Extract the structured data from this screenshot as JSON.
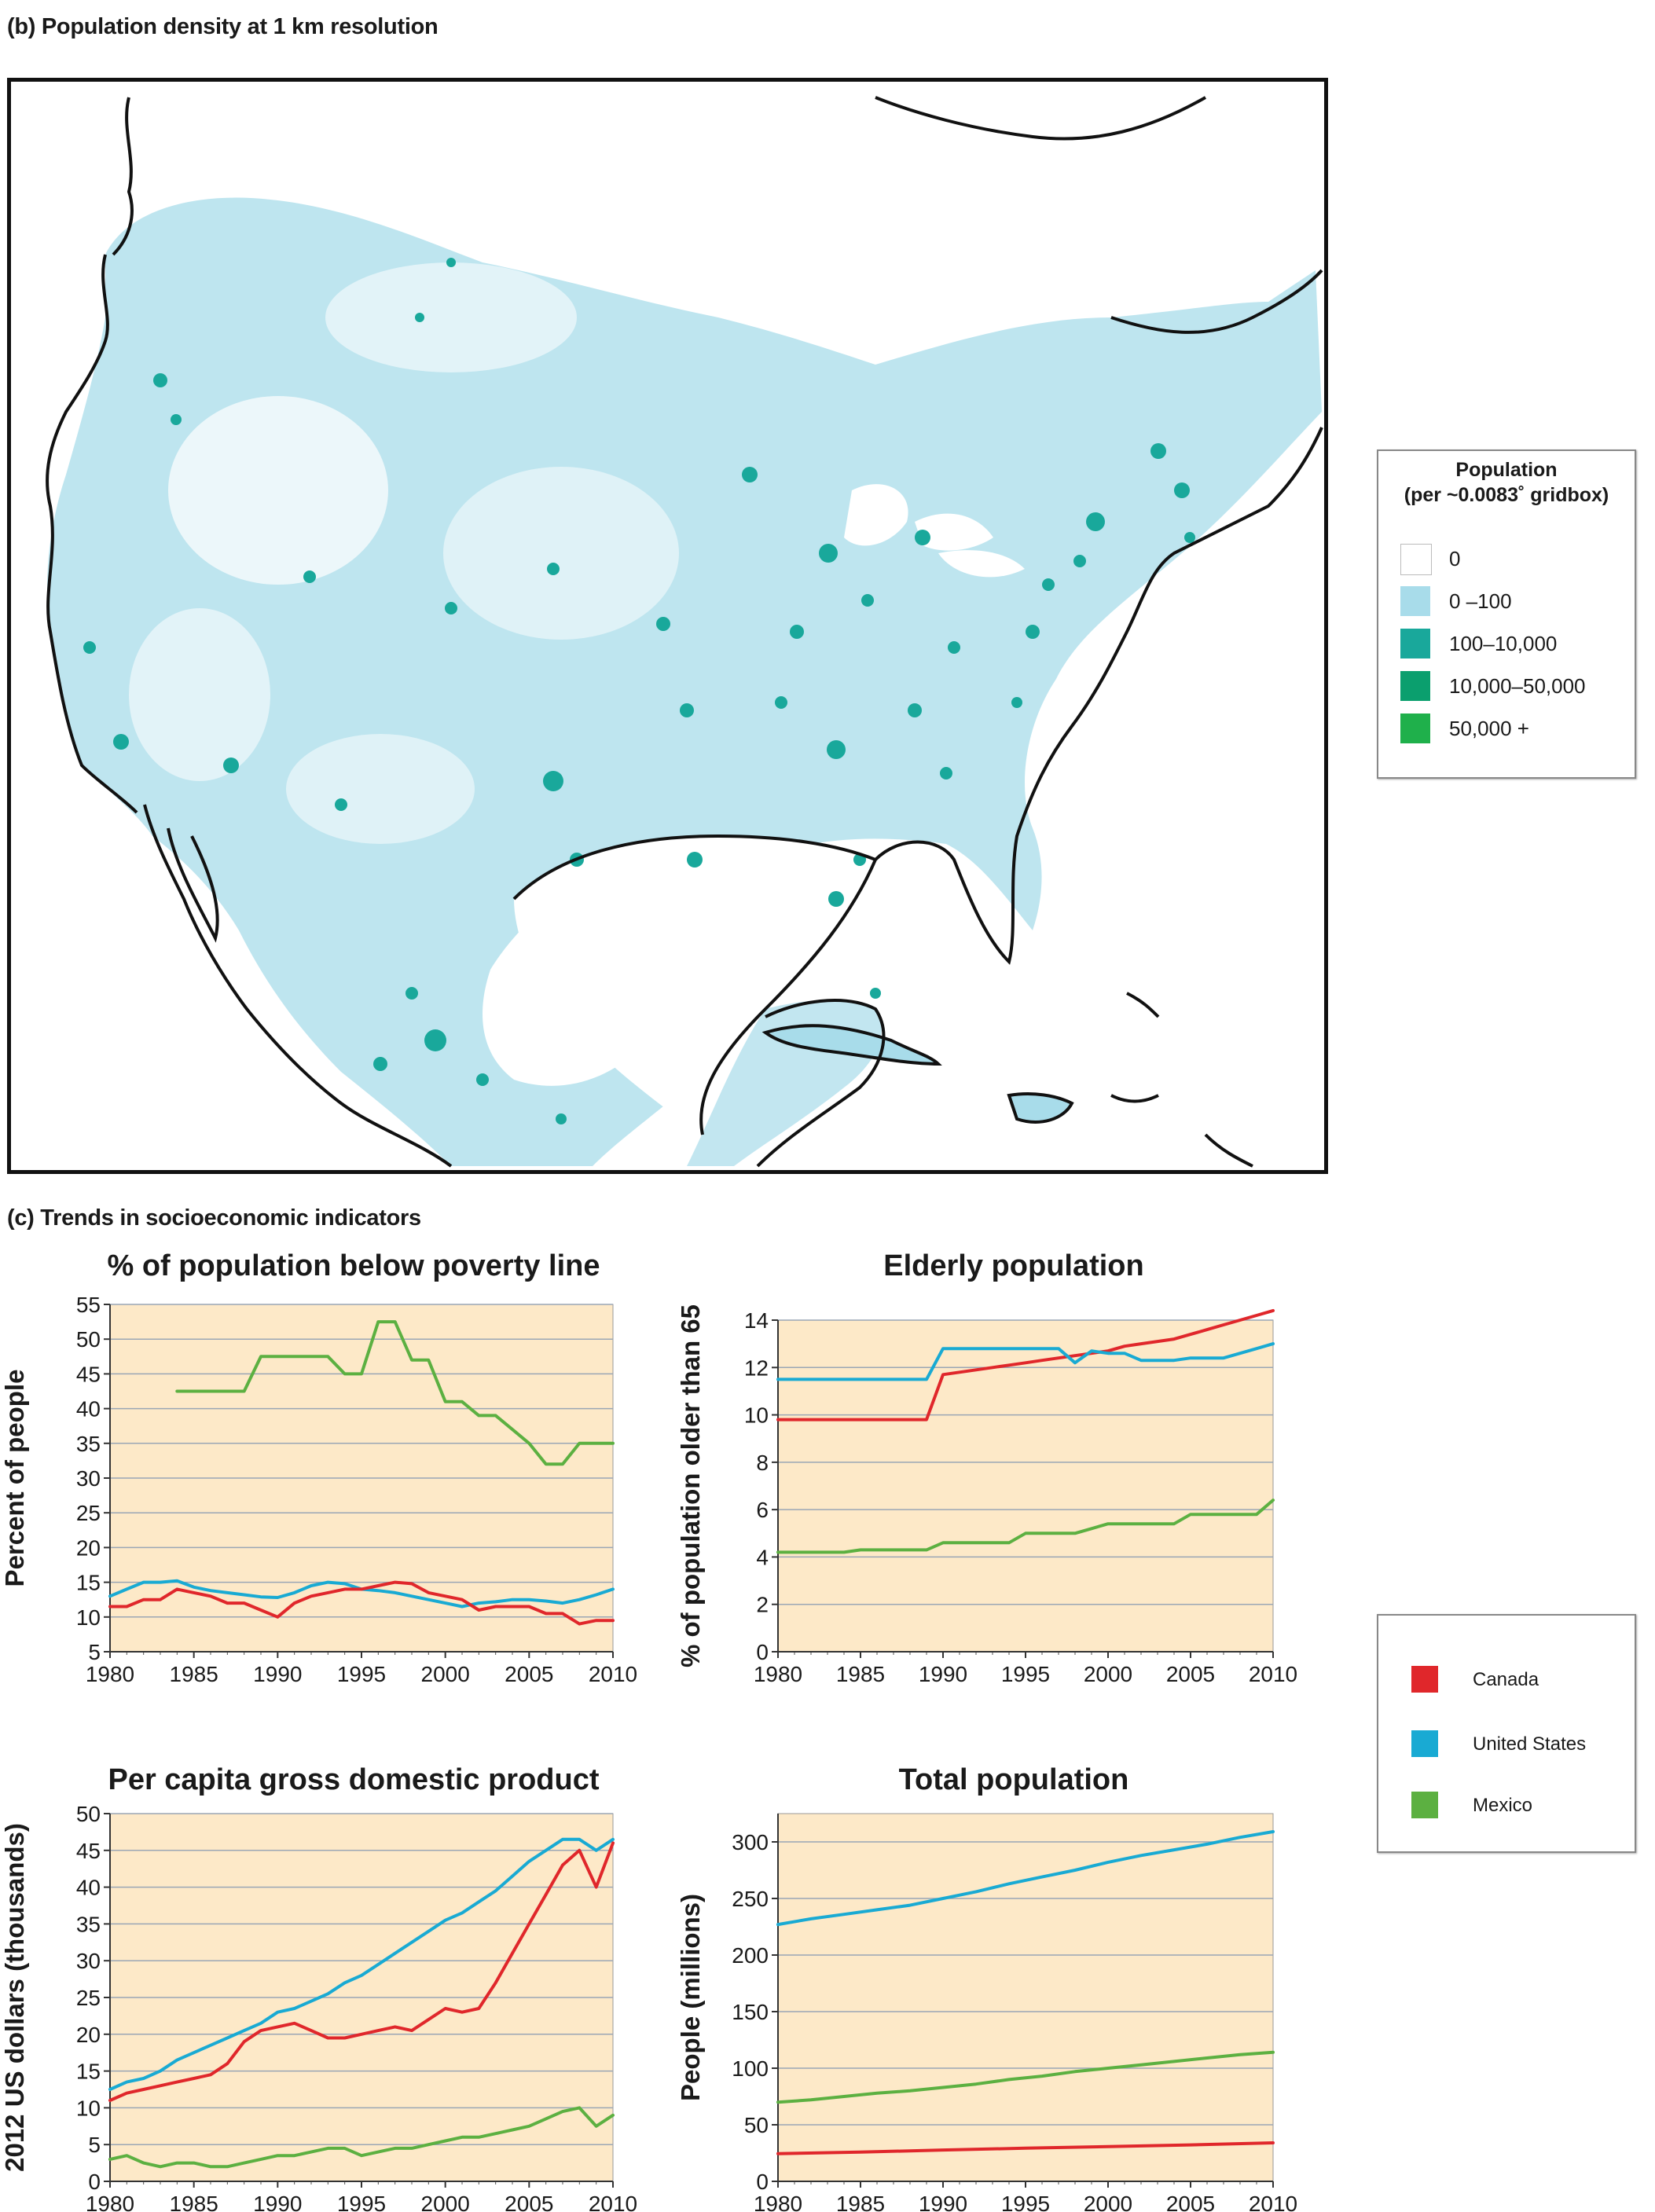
{
  "map_section": {
    "label": "(b) Population density at 1 km resolution",
    "legend": {
      "title_line1": "Population",
      "title_line2": "(per ~0.0083˚ gridbox)",
      "items": [
        {
          "label": "0",
          "color": "#ffffff"
        },
        {
          "label": "0 –100",
          "color": "#a8dcea"
        },
        {
          "label": "100–10,000",
          "color": "#19a89b"
        },
        {
          "label": "10,000–50,000",
          "color": "#0b9f6e"
        },
        {
          "label": "50,000 +",
          "color": "#1fb04b"
        }
      ]
    }
  },
  "trends_section": {
    "label": "(c) Trends in socioeconomic indicators"
  },
  "series_legend": [
    {
      "name": "Canada",
      "color": "#e0272b"
    },
    {
      "name": "United States",
      "color": "#19aad3"
    },
    {
      "name": "Mexico",
      "color": "#5cb041"
    }
  ],
  "colors": {
    "panel_bg": "#fde9c8",
    "grid": "#9aa6b5"
  },
  "chart_data": [
    {
      "id": "poverty",
      "type": "line",
      "title": "% of population below poverty line",
      "ylabel": "Percent of people",
      "xlabel": "",
      "xlim": [
        1980,
        2010
      ],
      "ylim": [
        5,
        55
      ],
      "xticks": [
        1980,
        1985,
        1990,
        1995,
        2000,
        2005,
        2010
      ],
      "yticks": [
        5,
        10,
        15,
        20,
        25,
        30,
        35,
        40,
        45,
        50,
        55
      ],
      "grid": true,
      "series": [
        {
          "name": "Mexico",
          "x": [
            1984,
            1988,
            1989,
            1993,
            1994,
            1995,
            1996,
            1997,
            1998,
            1999,
            2000,
            2001,
            2002,
            2003,
            2004,
            2005,
            2006,
            2007,
            2008,
            2010
          ],
          "values": [
            42.5,
            42.5,
            47.5,
            47.5,
            45,
            45,
            52.5,
            52.5,
            47,
            47,
            41,
            41,
            39,
            39,
            37,
            35,
            32,
            32,
            35,
            35
          ]
        },
        {
          "name": "United States",
          "x": [
            1980,
            1981,
            1982,
            1983,
            1984,
            1985,
            1986,
            1987,
            1988,
            1989,
            1990,
            1991,
            1992,
            1993,
            1994,
            1995,
            1996,
            1997,
            1998,
            1999,
            2000,
            2001,
            2002,
            2003,
            2004,
            2005,
            2006,
            2007,
            2008,
            2009,
            2010
          ],
          "values": [
            13,
            14,
            15,
            15,
            15.2,
            14.3,
            13.8,
            13.5,
            13.2,
            12.9,
            12.8,
            13.5,
            14.5,
            15,
            14.8,
            14,
            13.8,
            13.5,
            13,
            12.5,
            12,
            11.5,
            12,
            12.2,
            12.5,
            12.5,
            12.3,
            12,
            12.5,
            13.2,
            14
          ]
        },
        {
          "name": "Canada",
          "x": [
            1980,
            1981,
            1982,
            1983,
            1984,
            1985,
            1986,
            1987,
            1988,
            1989,
            1990,
            1991,
            1992,
            1993,
            1994,
            1995,
            1996,
            1997,
            1998,
            1999,
            2000,
            2001,
            2002,
            2003,
            2004,
            2005,
            2006,
            2007,
            2008,
            2009,
            2010
          ],
          "values": [
            11.5,
            11.5,
            12.5,
            12.5,
            14,
            13.5,
            13,
            12,
            12,
            11,
            10,
            12,
            13,
            13.5,
            14,
            14,
            14.5,
            15,
            14.8,
            13.5,
            13,
            12.5,
            11,
            11.5,
            11.5,
            11.5,
            10.5,
            10.5,
            9,
            9.5,
            9.5
          ]
        }
      ]
    },
    {
      "id": "elderly",
      "type": "line",
      "title": "Elderly population",
      "ylabel": "% of population older than 65",
      "xlabel": "",
      "xlim": [
        1980,
        2010
      ],
      "ylim": [
        0,
        14
      ],
      "xticks": [
        1980,
        1985,
        1990,
        1995,
        2000,
        2005,
        2010
      ],
      "yticks": [
        0,
        2,
        4,
        6,
        8,
        10,
        12,
        14
      ],
      "grid": true,
      "series": [
        {
          "name": "Canada",
          "x": [
            1980,
            1985,
            1989,
            1990,
            1991,
            1992,
            1993,
            1994,
            1995,
            1996,
            1997,
            1998,
            1999,
            2000,
            2001,
            2002,
            2003,
            2004,
            2005,
            2006,
            2007,
            2008,
            2009,
            2010
          ],
          "values": [
            9.8,
            9.8,
            9.8,
            11.7,
            11.8,
            11.9,
            12,
            12.1,
            12.2,
            12.3,
            12.4,
            12.5,
            12.6,
            12.7,
            12.9,
            13,
            13.1,
            13.2,
            13.4,
            13.6,
            13.8,
            14,
            14.2,
            14.4
          ]
        },
        {
          "name": "United States",
          "x": [
            1980,
            1989,
            1990,
            1997,
            1998,
            1999,
            2000,
            2001,
            2002,
            2003,
            2004,
            2005,
            2006,
            2007,
            2008,
            2009,
            2010
          ],
          "values": [
            11.5,
            11.5,
            12.8,
            12.8,
            12.2,
            12.7,
            12.6,
            12.6,
            12.3,
            12.3,
            12.3,
            12.4,
            12.4,
            12.4,
            12.6,
            12.8,
            13
          ]
        },
        {
          "name": "Mexico",
          "x": [
            1980,
            1984,
            1985,
            1989,
            1990,
            1994,
            1995,
            1998,
            1999,
            2000,
            2003,
            2004,
            2005,
            2009,
            2010
          ],
          "values": [
            4.2,
            4.2,
            4.3,
            4.3,
            4.6,
            4.6,
            5,
            5,
            5.2,
            5.4,
            5.4,
            5.4,
            5.8,
            5.8,
            6.4
          ]
        }
      ]
    },
    {
      "id": "gdp",
      "type": "line",
      "title": "Per capita gross domestic product",
      "ylabel": "2012 US dollars (thousands)",
      "xlabel": "",
      "xlim": [
        1980,
        2010
      ],
      "ylim": [
        0,
        50
      ],
      "xticks": [
        1980,
        1985,
        1990,
        1995,
        2000,
        2005,
        2010
      ],
      "yticks": [
        0,
        5,
        10,
        15,
        20,
        25,
        30,
        35,
        40,
        45,
        50
      ],
      "grid": true,
      "series": [
        {
          "name": "United States",
          "x": [
            1980,
            1981,
            1982,
            1983,
            1984,
            1985,
            1986,
            1987,
            1988,
            1989,
            1990,
            1991,
            1992,
            1993,
            1994,
            1995,
            1996,
            1997,
            1998,
            1999,
            2000,
            2001,
            2002,
            2003,
            2004,
            2005,
            2006,
            2007,
            2008,
            2009,
            2010
          ],
          "values": [
            12.5,
            13.5,
            14,
            15,
            16.5,
            17.5,
            18.5,
            19.5,
            20.5,
            21.5,
            23,
            23.5,
            24.5,
            25.5,
            27,
            28,
            29.5,
            31,
            32.5,
            34,
            35.5,
            36.5,
            38,
            39.5,
            41.5,
            43.5,
            45,
            46.5,
            46.5,
            45,
            46.5
          ]
        },
        {
          "name": "Canada",
          "x": [
            1980,
            1981,
            1982,
            1983,
            1984,
            1985,
            1986,
            1987,
            1988,
            1989,
            1990,
            1991,
            1992,
            1993,
            1994,
            1995,
            1996,
            1997,
            1998,
            1999,
            2000,
            2001,
            2002,
            2003,
            2004,
            2005,
            2006,
            2007,
            2008,
            2009,
            2010
          ],
          "values": [
            11,
            12,
            12.5,
            13,
            13.5,
            14,
            14.5,
            16,
            19,
            20.5,
            21,
            21.5,
            20.5,
            19.5,
            19.5,
            20,
            20.5,
            21,
            20.5,
            22,
            23.5,
            23,
            23.5,
            27,
            31,
            35,
            39,
            43,
            45,
            40,
            46
          ]
        },
        {
          "name": "Mexico",
          "x": [
            1980,
            1981,
            1982,
            1983,
            1984,
            1985,
            1986,
            1987,
            1988,
            1989,
            1990,
            1991,
            1992,
            1993,
            1994,
            1995,
            1996,
            1997,
            1998,
            1999,
            2000,
            2001,
            2002,
            2003,
            2004,
            2005,
            2006,
            2007,
            2008,
            2009,
            2010
          ],
          "values": [
            3,
            3.5,
            2.5,
            2,
            2.5,
            2.5,
            2,
            2,
            2.5,
            3,
            3.5,
            3.5,
            4,
            4.5,
            4.5,
            3.5,
            4,
            4.5,
            4.5,
            5,
            5.5,
            6,
            6,
            6.5,
            7,
            7.5,
            8.5,
            9.5,
            10,
            7.5,
            9
          ]
        }
      ]
    },
    {
      "id": "population",
      "type": "line",
      "title": "Total population",
      "ylabel": "People (millions)",
      "xlabel": "",
      "xlim": [
        1980,
        2010
      ],
      "ylim": [
        0,
        325
      ],
      "xticks": [
        1980,
        1985,
        1990,
        1995,
        2000,
        2005,
        2010
      ],
      "yticks": [
        0,
        50,
        100,
        150,
        200,
        250,
        300
      ],
      "grid": true,
      "series": [
        {
          "name": "United States",
          "x": [
            1980,
            1982,
            1984,
            1986,
            1988,
            1990,
            1992,
            1994,
            1996,
            1998,
            2000,
            2002,
            2004,
            2006,
            2008,
            2010
          ],
          "values": [
            227,
            232,
            236,
            240,
            244,
            250,
            256,
            263,
            269,
            275,
            282,
            288,
            293,
            298,
            304,
            309
          ]
        },
        {
          "name": "Mexico",
          "x": [
            1980,
            1982,
            1984,
            1986,
            1988,
            1990,
            1992,
            1994,
            1996,
            1998,
            2000,
            2002,
            2004,
            2006,
            2008,
            2010
          ],
          "values": [
            70,
            72,
            75,
            78,
            80,
            83,
            86,
            90,
            93,
            97,
            100,
            103,
            106,
            109,
            112,
            114
          ]
        },
        {
          "name": "Canada",
          "x": [
            1980,
            1985,
            1990,
            1995,
            2000,
            2005,
            2010
          ],
          "values": [
            24.5,
            25.8,
            27.7,
            29.3,
            30.7,
            32.2,
            34
          ]
        }
      ]
    }
  ]
}
